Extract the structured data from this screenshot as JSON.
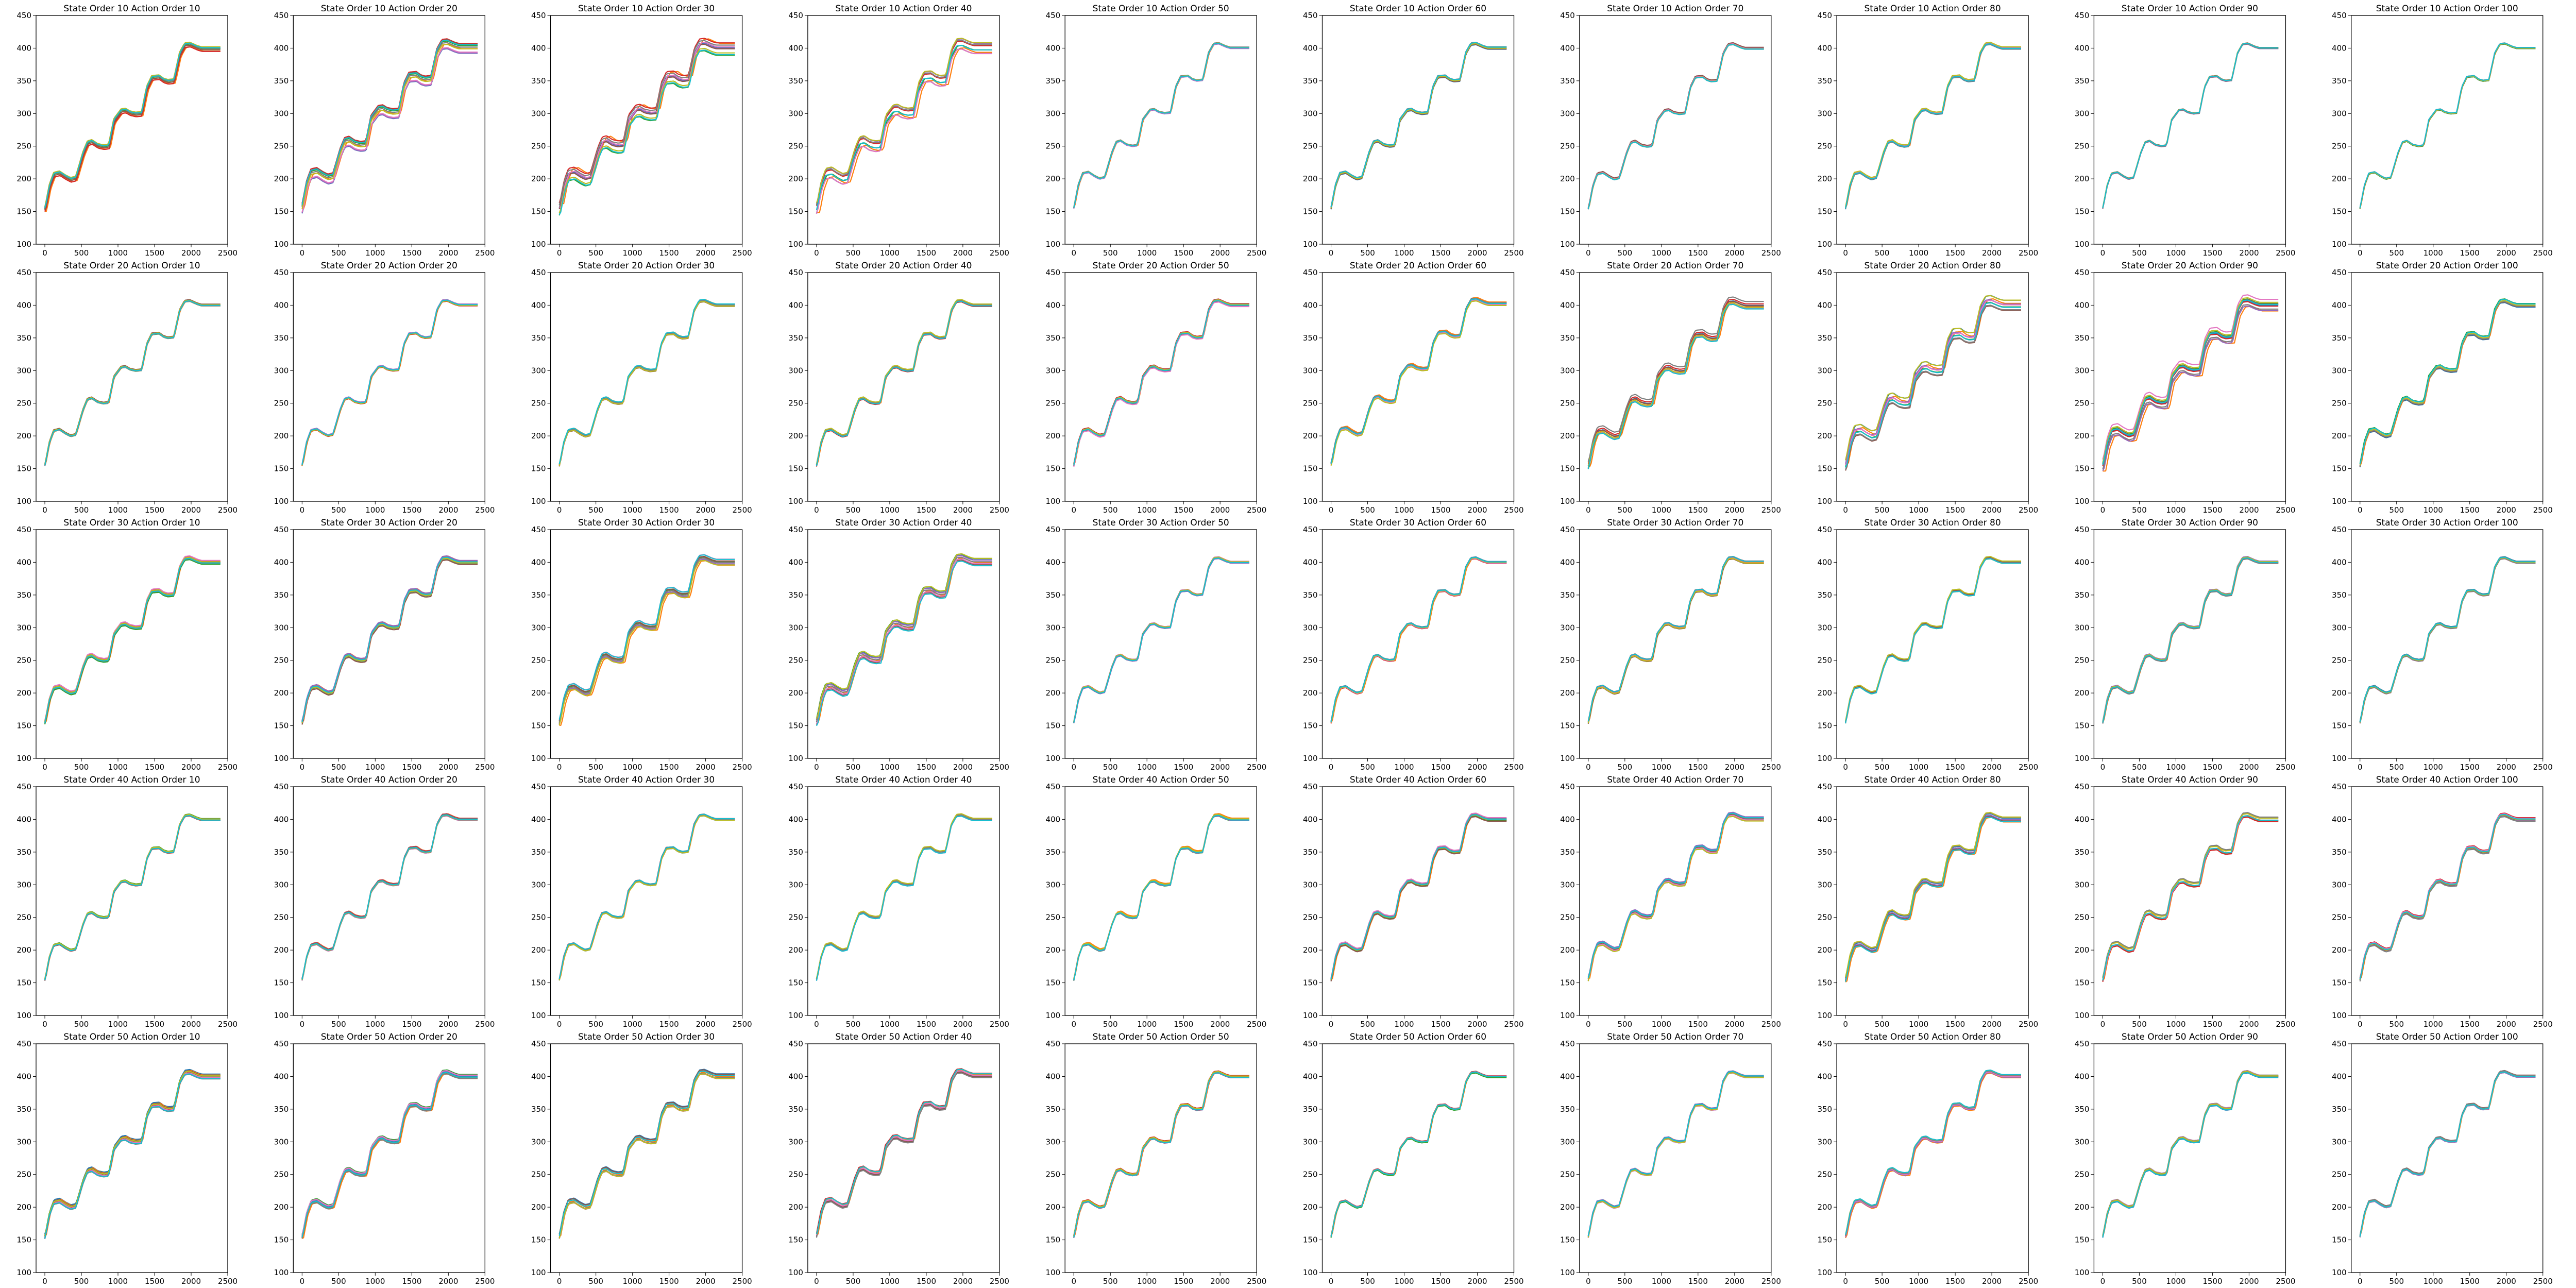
{
  "figure": {
    "subplots_title": "State Order {state} Action Order {action}",
    "rows": 5,
    "cols": 10,
    "state_orders": [
      10,
      20,
      30,
      40,
      50
    ],
    "action_orders": [
      10,
      20,
      30,
      40,
      50,
      60,
      70,
      80,
      90,
      100
    ]
  },
  "style": {
    "series_colors": [
      "#1f77b4",
      "#ff7f0e",
      "#2ca02c",
      "#d62728",
      "#9467bd",
      "#8c564b",
      "#e377c2",
      "#7f7f7f",
      "#bcbd22",
      "#17becf"
    ],
    "axis_color": "#000000",
    "background": "#ffffff"
  },
  "chart_data": {
    "type": "line",
    "layout": "grid 5x10",
    "x_ticks": [
      0,
      500,
      1000,
      1500,
      2000,
      2500
    ],
    "y_ticks": [
      100,
      150,
      200,
      250,
      300,
      350,
      400,
      450
    ],
    "xlim": [
      -120,
      2500
    ],
    "ylim": [
      100,
      450
    ],
    "grid": false,
    "legend": "none",
    "reference_trajectory": {
      "x": [
        0,
        60,
        120,
        200,
        280,
        350,
        420,
        520,
        580,
        640,
        720,
        800,
        870,
        940,
        1040,
        1100,
        1160,
        1240,
        1320,
        1390,
        1460,
        1560,
        1620,
        1680,
        1760,
        1840,
        1910,
        1980,
        2080,
        2140,
        2200,
        2280,
        2400
      ],
      "y": [
        155,
        190,
        208,
        210,
        204,
        200,
        202,
        240,
        256,
        258,
        252,
        250,
        251,
        290,
        305,
        306,
        302,
        300,
        301,
        340,
        356,
        357,
        352,
        350,
        351,
        392,
        406,
        407,
        402,
        400,
        400,
        400,
        400
      ]
    },
    "spread_by_subplot": [
      [
        6,
        8,
        12,
        9,
        2,
        2,
        2,
        2,
        1,
        1
      ],
      [
        2,
        2,
        2,
        2,
        3,
        5,
        6,
        8,
        9,
        3
      ],
      [
        3,
        4,
        6,
        7,
        2,
        2,
        2,
        2,
        2,
        2
      ],
      [
        2,
        2,
        2,
        2,
        2,
        3,
        4,
        4,
        4,
        3
      ],
      [
        4,
        4,
        4,
        5,
        2,
        2,
        2,
        3,
        2,
        2
      ]
    ]
  }
}
